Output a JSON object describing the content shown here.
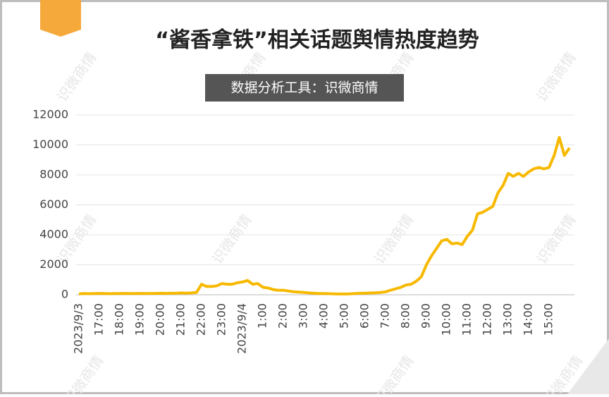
{
  "chart_data": {
    "type": "line",
    "title": "“酱香拿铁”相关话题舆情热度趋势",
    "subtitle": "数据分析工具：识微商情",
    "watermark": "识微商情",
    "categories": [
      "2023/9/3",
      null,
      null,
      null,
      "17:00",
      null,
      null,
      null,
      "18:00",
      null,
      null,
      null,
      "19:00",
      null,
      null,
      null,
      "20:00",
      null,
      null,
      null,
      "21:00",
      null,
      null,
      null,
      "22:00",
      null,
      null,
      null,
      "23:00",
      null,
      null,
      null,
      "2023/9/4",
      null,
      null,
      null,
      "1:00",
      null,
      null,
      null,
      "2:00",
      null,
      null,
      null,
      "3:00",
      null,
      null,
      null,
      "4:00",
      null,
      null,
      null,
      "5:00",
      null,
      null,
      null,
      "6:00",
      null,
      null,
      null,
      "7:00",
      null,
      null,
      null,
      "8:00",
      null,
      null,
      null,
      "9:00",
      null,
      null,
      null,
      "10:00",
      null,
      null,
      null,
      "11:00",
      null,
      null,
      null,
      "12:00",
      null,
      null,
      null,
      "13:00",
      null,
      null,
      null,
      "14:00",
      null,
      null,
      null,
      "15:00",
      null,
      null,
      null,
      null
    ],
    "values": [
      60,
      80,
      70,
      80,
      90,
      80,
      70,
      80,
      80,
      90,
      80,
      80,
      90,
      80,
      90,
      90,
      100,
      90,
      100,
      100,
      120,
      110,
      120,
      150,
      700,
      550,
      550,
      600,
      750,
      700,
      700,
      800,
      850,
      950,
      700,
      750,
      500,
      450,
      350,
      300,
      300,
      250,
      200,
      180,
      150,
      120,
      100,
      80,
      80,
      70,
      60,
      50,
      50,
      60,
      80,
      100,
      100,
      120,
      130,
      150,
      200,
      300,
      400,
      500,
      650,
      700,
      900,
      1200,
      2000,
      2600,
      3100,
      3600,
      3700,
      3400,
      3450,
      3350,
      3900,
      4300,
      5400,
      5500,
      5700,
      5900,
      6800,
      7300,
      8100,
      7900,
      8100,
      7900,
      8200,
      8400,
      8500,
      8400,
      8500,
      9300,
      10500,
      9300,
      9800
    ],
    "color": "#f7b900",
    "ylim": [
      0,
      12000
    ],
    "yticks": [
      0,
      2000,
      4000,
      6000,
      8000,
      10000,
      12000
    ],
    "grid": true
  }
}
